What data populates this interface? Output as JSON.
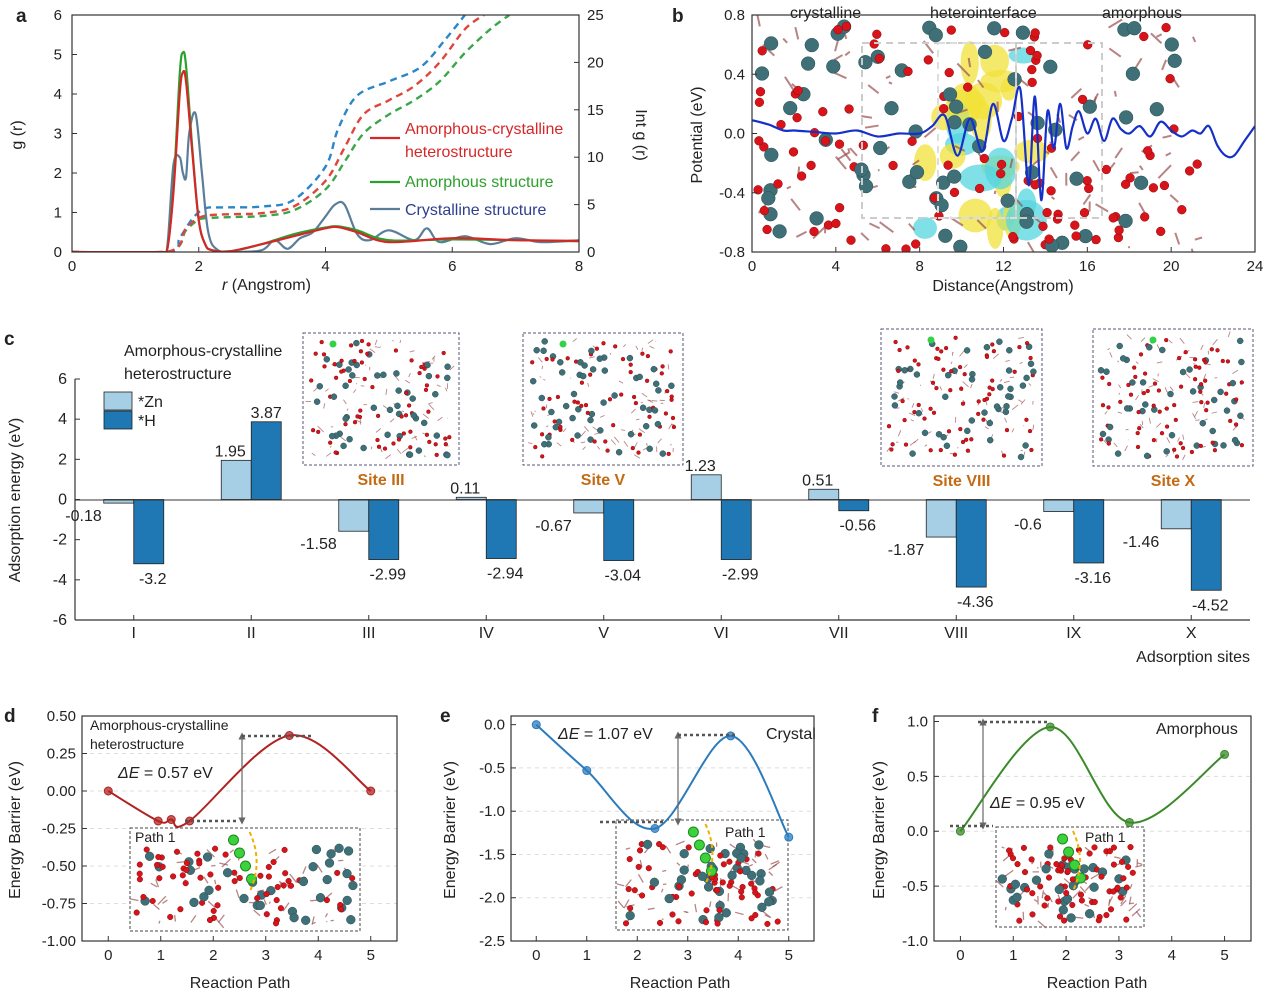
{
  "panel_letters": [
    "a",
    "b",
    "c",
    "d",
    "e",
    "f"
  ],
  "colors": {
    "hetero": "#d62728",
    "amorphous": "#2ca02c",
    "crystalline": "#5a7e99",
    "crystalline_legend": "#2f3f8f",
    "cum_hetero": "#e0453c",
    "cum_amorphous": "#3aa64a",
    "cum_crystal": "#2a86c8",
    "potential": "#1530c8",
    "zn_bar": "#a6cfe6",
    "h_bar": "#1f77b4",
    "path_d": "#b22222",
    "path_e": "#2b7bbd",
    "path_f": "#3a8a2a",
    "site_label": "#c46a12",
    "atom_o": "#d8141a",
    "atom_metal": "#3f7077"
  },
  "chart_data": [
    {
      "id": "a",
      "type": "line",
      "xlabel_prefix": "r",
      "xlabel": " (Angstrom)",
      "ylabel": "g (r)",
      "ylabel2": "Int  g (r)",
      "xlim": [
        0,
        8
      ],
      "ylim": [
        0,
        6
      ],
      "y2lim": [
        0,
        25
      ],
      "xticks": [
        0,
        2,
        4,
        6,
        8
      ],
      "yticks": [
        0,
        1,
        2,
        3,
        4,
        5,
        6
      ],
      "y2ticks": [
        0,
        5,
        10,
        15,
        20,
        25
      ],
      "legend": [
        "Amorphous-crystalline",
        "heterostructure",
        "Amorphous structure",
        "Crystalline structure"
      ],
      "series": [
        {
          "key": "hetero",
          "x": [
            0,
            1.4,
            1.5,
            1.6,
            1.7,
            1.75,
            1.8,
            1.9,
            2.0,
            2.1,
            2.2,
            2.5,
            3.0,
            3.5,
            4.0,
            4.2,
            4.5,
            5.0,
            6.0,
            7.0,
            8.0
          ],
          "y": [
            0,
            0,
            0.05,
            1.5,
            4.0,
            4.55,
            4.3,
            2.5,
            0.8,
            0.2,
            0.05,
            0.02,
            0.2,
            0.4,
            0.6,
            0.63,
            0.5,
            0.25,
            0.35,
            0.3,
            0.28
          ]
        },
        {
          "key": "amorphous",
          "x": [
            0,
            1.4,
            1.5,
            1.6,
            1.7,
            1.75,
            1.8,
            1.9,
            2.0,
            2.1,
            2.2,
            2.5,
            3.0,
            3.5,
            4.0,
            4.2,
            4.5,
            5.0,
            6.0,
            7.0,
            8.0
          ],
          "y": [
            0,
            0,
            0.05,
            1.6,
            4.5,
            5.05,
            4.7,
            2.6,
            0.8,
            0.2,
            0.05,
            0.02,
            0.2,
            0.45,
            0.62,
            0.65,
            0.55,
            0.3,
            0.32,
            0.3,
            0.27
          ]
        },
        {
          "key": "crystalline",
          "x": [
            0,
            1.4,
            1.5,
            1.6,
            1.7,
            1.75,
            1.8,
            1.85,
            1.95,
            2.05,
            2.15,
            2.3,
            2.6,
            3.0,
            3.2,
            3.4,
            3.6,
            3.8,
            4.0,
            4.15,
            4.3,
            4.5,
            4.7,
            5.0,
            5.4,
            5.6,
            5.8,
            6.2,
            6.6,
            7.0,
            7.4,
            8.0
          ],
          "y": [
            0,
            0,
            0.1,
            2.2,
            2.4,
            2.0,
            1.9,
            3.0,
            3.5,
            2.0,
            0.5,
            0.05,
            0.0,
            0.05,
            0.3,
            0.08,
            0.35,
            0.5,
            0.9,
            1.2,
            1.2,
            0.45,
            0.3,
            0.55,
            0.3,
            0.6,
            0.25,
            0.4,
            0.2,
            0.35,
            0.25,
            0.3
          ]
        },
        {
          "key": "cum_hetero",
          "x": [
            0,
            1.5,
            1.8,
            2.0,
            2.2,
            2.6,
            3.0,
            3.5,
            4.0,
            4.3,
            4.6,
            5.0,
            5.4,
            5.8,
            6.2,
            6.5
          ],
          "y2": [
            0,
            0,
            2.5,
            3.6,
            3.9,
            4.0,
            4.1,
            4.8,
            7.5,
            11.0,
            14.5,
            16.0,
            17.5,
            20.0,
            23.5,
            25
          ]
        },
        {
          "key": "cum_amorphous",
          "x": [
            0,
            1.5,
            1.8,
            2.0,
            2.2,
            2.6,
            3.0,
            3.5,
            4.0,
            4.3,
            4.6,
            5.0,
            5.4,
            5.8,
            6.2,
            6.6,
            6.9
          ],
          "y2": [
            0,
            0,
            2.3,
            3.4,
            3.6,
            3.7,
            3.8,
            4.4,
            6.6,
            9.5,
            12.5,
            14.5,
            16.0,
            18.0,
            21.0,
            23.5,
            25
          ]
        },
        {
          "key": "cum_crystal",
          "x": [
            0,
            1.5,
            1.7,
            1.9,
            2.1,
            2.4,
            3.0,
            3.5,
            4.0,
            4.2,
            4.5,
            5.0,
            5.5,
            5.9,
            6.2
          ],
          "y2": [
            0,
            0,
            1.5,
            3.5,
            4.6,
            4.7,
            4.8,
            5.5,
            9.0,
            13.0,
            16.5,
            18.0,
            19.5,
            22.5,
            25
          ]
        }
      ]
    },
    {
      "id": "b",
      "type": "line",
      "xlabel": "Distance(Angstrom)",
      "ylabel": "Potential (eV)",
      "xlim": [
        0,
        24
      ],
      "ylim": [
        -0.8,
        0.8
      ],
      "xticks": [
        0,
        4,
        8,
        12,
        16,
        20,
        24
      ],
      "yticks": [
        -0.8,
        -0.4,
        0.0,
        0.4,
        0.8
      ],
      "ytick_labels": [
        "-0.8",
        "-0.4",
        "0.0",
        "0.4",
        "0.8"
      ],
      "region_labels": [
        "crystalline",
        "heterointerface",
        "amorphous"
      ],
      "series": [
        {
          "key": "potential",
          "x": [
            0,
            0.8,
            1.5,
            2,
            3,
            4,
            5,
            6,
            7,
            8,
            8.6,
            9.2,
            9.8,
            10.4,
            11.0,
            11.5,
            12.0,
            12.4,
            12.8,
            13.2,
            13.5,
            13.8,
            14.1,
            14.4,
            14.7,
            15.0,
            15.3,
            15.6,
            16.0,
            16.4,
            16.8,
            17.2,
            17.6,
            18.0,
            18.5,
            19.0,
            19.5,
            20.0,
            20.5,
            21.0,
            21.4,
            21.8,
            22.2,
            22.6,
            23.0,
            23.5,
            24.0
          ],
          "y": [
            0.09,
            0.06,
            0.02,
            0.02,
            0.01,
            0.0,
            0.02,
            -0.02,
            0.0,
            0.0,
            0.05,
            0.12,
            -0.15,
            0.1,
            -0.12,
            0.2,
            -0.05,
            0.1,
            0.3,
            -0.35,
            0.25,
            -0.45,
            0.15,
            -0.1,
            0.2,
            -0.1,
            0.05,
            0.15,
            0.0,
            0.1,
            -0.05,
            0.1,
            0.03,
            0.0,
            0.05,
            -0.02,
            0.08,
            0.02,
            -0.02,
            0.02,
            0.0,
            0.05,
            -0.08,
            -0.15,
            -0.15,
            -0.05,
            0.05
          ]
        }
      ]
    },
    {
      "id": "c",
      "type": "bar",
      "title": "Amorphous-crystalline",
      "subtitle": "heterostructure",
      "xlabel": "Adsorption sites",
      "ylabel": "Adsorption energy (eV)",
      "ylim": [
        -6,
        6
      ],
      "yticks": [
        -6,
        -4,
        -2,
        0,
        2,
        4,
        6
      ],
      "categories": [
        "I",
        "II",
        "III",
        "IV",
        "V",
        "VI",
        "VII",
        "VIII",
        "IX",
        "X"
      ],
      "series": [
        {
          "name": "*Zn",
          "values": [
            -0.18,
            1.95,
            -1.58,
            0.11,
            -0.67,
            1.23,
            0.51,
            -1.87,
            -0.6,
            -1.46
          ]
        },
        {
          "name": "*H",
          "values": [
            -3.2,
            3.87,
            -2.99,
            -2.94,
            -3.04,
            -2.99,
            -0.56,
            -4.36,
            -3.16,
            -4.52
          ]
        }
      ],
      "insets": [
        "Site III",
        "Site V",
        "Site VIII",
        "Site X"
      ]
    },
    {
      "id": "d",
      "type": "line",
      "xlabel": "Reaction Path",
      "ylabel": "Energy Barrier (eV)",
      "xlim": [
        -0.5,
        5.5
      ],
      "ylim": [
        -1.0,
        0.5
      ],
      "xticks": [
        0,
        1,
        2,
        3,
        4,
        5
      ],
      "yticks": [
        -1.0,
        -0.75,
        -0.5,
        -0.25,
        0.0,
        0.25,
        0.5
      ],
      "ytick_labels": [
        "-1.00",
        "-0.75",
        "-0.50",
        "-0.25",
        "0.00",
        "0.25",
        "0.50"
      ],
      "annotation_title": [
        "Amorphous-crystalline",
        "heterostructure"
      ],
      "delta_symbol": "ΔE",
      "delta_value": " = 0.57 eV",
      "inset_label": "Path 1",
      "points": {
        "x": [
          0,
          0.95,
          1.2,
          1.55,
          3.45,
          5
        ],
        "y": [
          0.0,
          -0.2,
          -0.19,
          -0.2,
          0.37,
          0.0
        ]
      }
    },
    {
      "id": "e",
      "type": "line",
      "xlabel": "Reaction Path",
      "ylabel": "Energy Barrier (eV)",
      "xlim": [
        -0.5,
        5.5
      ],
      "ylim": [
        -2.5,
        0.1
      ],
      "xticks": [
        0,
        1,
        2,
        3,
        4,
        5
      ],
      "yticks": [
        -2.5,
        -2.0,
        -1.5,
        -1.0,
        -0.5,
        0.0
      ],
      "ytick_labels": [
        "-2.5",
        "-2.0",
        "-1.5",
        "-1.0",
        "-0.5",
        "0.0"
      ],
      "annotation_title": [
        "Crystal"
      ],
      "delta_symbol": "ΔE",
      "delta_value": " = 1.07 eV",
      "inset_label": "Path 1",
      "points": {
        "x": [
          0,
          1,
          2.35,
          3.85,
          5
        ],
        "y": [
          0.0,
          -0.53,
          -1.2,
          -0.13,
          -1.3
        ]
      }
    },
    {
      "id": "f",
      "type": "line",
      "xlabel": "Reaction Path",
      "ylabel": "Energy Barrier (eV)",
      "xlim": [
        -0.5,
        5.5
      ],
      "ylim": [
        -1.0,
        1.05
      ],
      "xticks": [
        0,
        1,
        2,
        3,
        4,
        5
      ],
      "yticks": [
        -1.0,
        -0.5,
        0.0,
        0.5,
        1.0
      ],
      "ytick_labels": [
        "-1.0",
        "-0.5",
        "0.0",
        "0.5",
        "1.0"
      ],
      "annotation_title": [
        "Amorphous"
      ],
      "delta_symbol": "ΔE",
      "delta_value": " = 0.95 eV",
      "inset_label": "Path 1",
      "points": {
        "x": [
          0,
          1.7,
          3.2,
          5
        ],
        "y": [
          0.0,
          0.95,
          0.08,
          0.7
        ]
      }
    }
  ]
}
